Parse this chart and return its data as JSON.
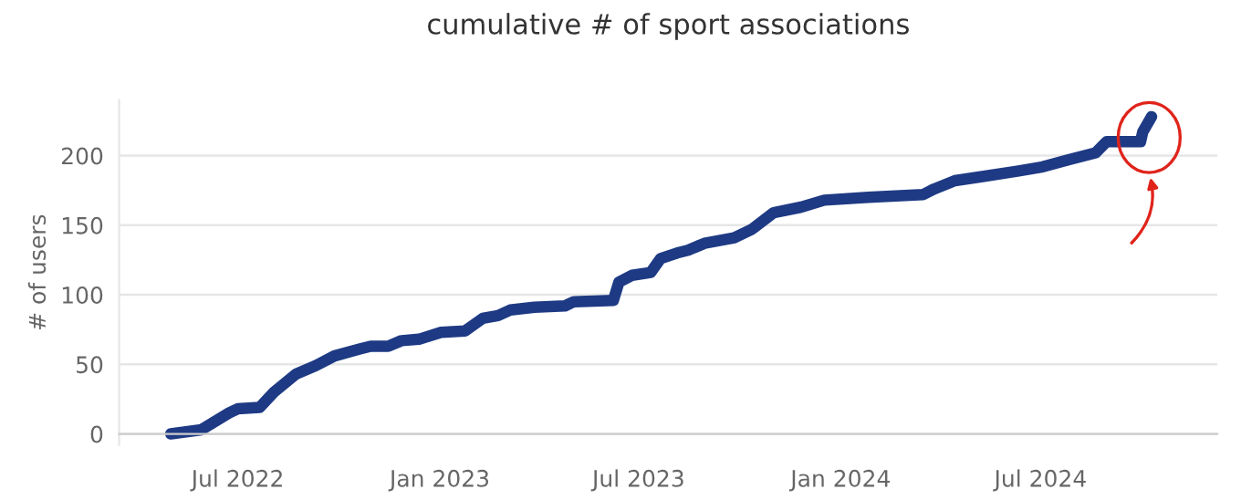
{
  "chart_data": {
    "type": "line",
    "title": "cumulative # of sport associations",
    "ylabel": "# of users",
    "x": [
      "2022-05-01",
      "2022-05-29",
      "2022-06-23",
      "2022-07-01",
      "2022-07-21",
      "2022-08-03",
      "2022-08-23",
      "2022-09-10",
      "2022-09-27",
      "2022-10-20",
      "2022-10-30",
      "2022-11-15",
      "2022-11-27",
      "2022-12-13",
      "2023-01-02",
      "2023-01-24",
      "2023-02-09",
      "2023-02-23",
      "2023-03-06",
      "2023-03-28",
      "2023-04-25",
      "2023-05-03",
      "2023-06-08",
      "2023-06-13",
      "2023-06-25",
      "2023-07-12",
      "2023-07-21",
      "2023-08-05",
      "2023-08-15",
      "2023-08-30",
      "2023-09-26",
      "2023-10-12",
      "2023-11-01",
      "2023-11-26",
      "2023-12-17",
      "2024-01-26",
      "2024-03-16",
      "2024-03-26",
      "2024-04-14",
      "2024-05-09",
      "2024-06-11",
      "2024-07-03",
      "2024-07-26",
      "2024-08-20",
      "2024-08-30",
      "2024-09-30",
      "2024-10-02",
      "2024-10-10"
    ],
    "series": [
      {
        "color": "#1e3a84",
        "values": [
          0,
          3,
          15,
          18,
          19,
          30,
          43,
          49,
          56,
          61,
          63,
          63,
          67,
          68,
          73,
          74,
          83,
          85,
          89,
          91,
          92,
          95,
          96,
          109,
          114,
          116,
          126,
          130,
          132,
          137,
          141,
          147,
          159,
          163,
          168,
          170,
          172,
          176,
          182,
          185,
          189,
          192,
          197,
          202,
          210,
          210,
          217,
          228
        ]
      }
    ],
    "xlim": [
      "2022-03-15",
      "2024-12-09"
    ],
    "xticks": [
      {
        "value": "2022-07-01",
        "label": "Jul 2022"
      },
      {
        "value": "2023-01-01",
        "label": "Jan 2023"
      },
      {
        "value": "2023-07-01",
        "label": "Jul 2023"
      },
      {
        "value": "2024-01-01",
        "label": "Jan 2024"
      },
      {
        "value": "2024-07-01",
        "label": "Jul 2024"
      }
    ],
    "ylim": [
      -8,
      240
    ],
    "yticks": [
      0,
      50,
      100,
      150,
      200
    ],
    "grid": "y",
    "line_style": "solid",
    "legend": false
  }
}
